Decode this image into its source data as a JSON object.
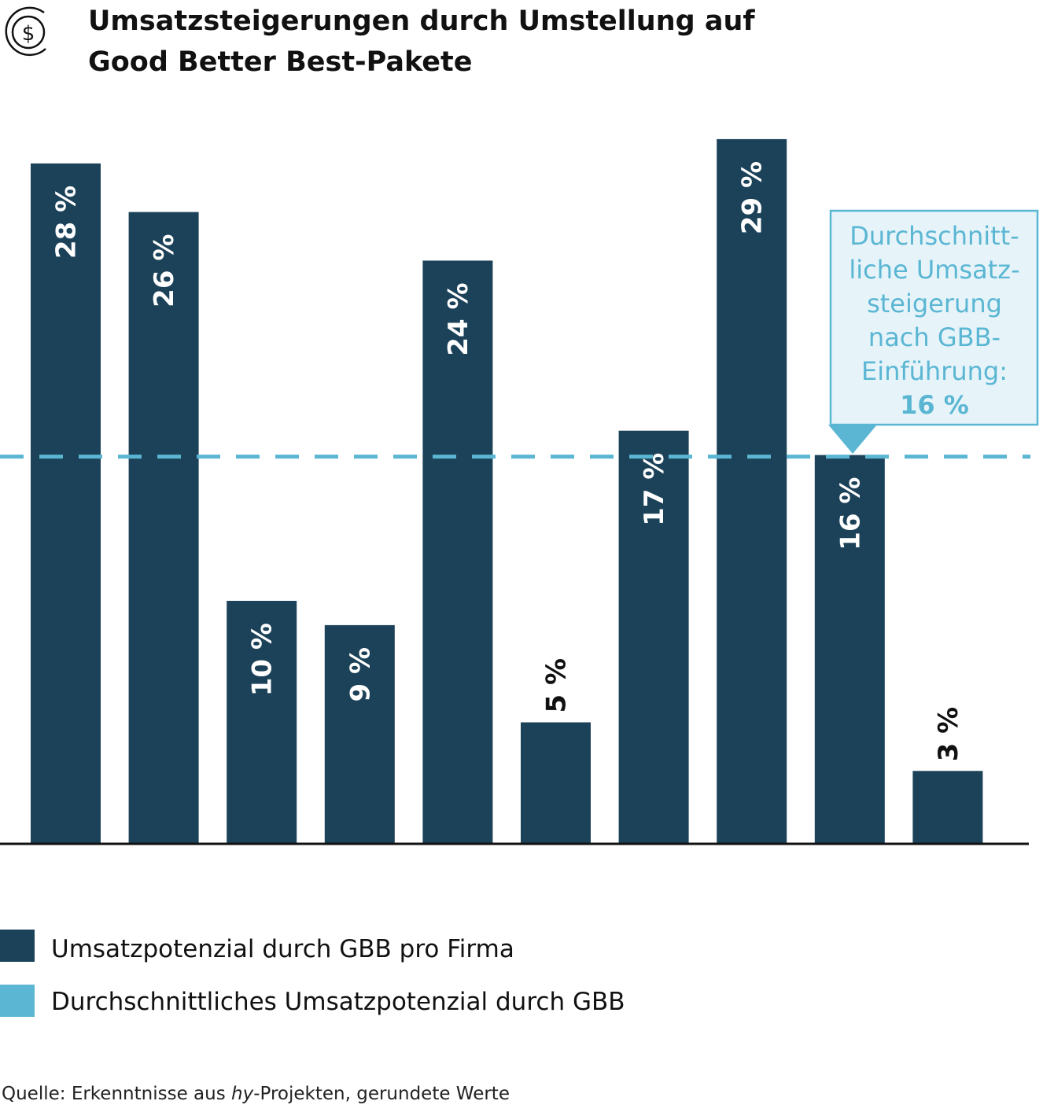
{
  "header": {
    "icon": "dollar-coin-icon",
    "title_line1": "Umsatzsteigerungen durch Umstellung auf",
    "title_line2": "Good Better Best-Pakete"
  },
  "chart_data": {
    "type": "bar",
    "categories": [
      "",
      "",
      "",
      "",
      "",
      "",
      "",
      "",
      "",
      ""
    ],
    "series": [
      {
        "name": "Umsatzpotenzial durch GBB pro Firma",
        "values": [
          28,
          26,
          10,
          9,
          24,
          5,
          17,
          29,
          16,
          3
        ],
        "labels": [
          "28 %",
          "26 %",
          "10 %",
          "9 %",
          "24 %",
          "5 %",
          "17 %",
          "29 %",
          "16 %",
          "3 %"
        ],
        "color": "#1c4259"
      }
    ],
    "average": {
      "name": "Durchschnittliches Umsatzpotenzial durch GBB",
      "value": 16,
      "color": "#5ab6d3",
      "style": "dashed"
    },
    "ylim": [
      0,
      30
    ],
    "grid": false,
    "legend_position": "bottom-left"
  },
  "callout": {
    "lines": [
      "Durchschnitt-",
      "liche Umsatz-",
      "steigerung",
      "nach GBB-",
      "Einführung:"
    ],
    "value": "16 %"
  },
  "legend": {
    "items": [
      {
        "label": "Umsatzpotenzial durch GBB pro Firma",
        "color": "#1c4259"
      },
      {
        "label": "Durchschnittliches Umsatzpotenzial durch GBB",
        "color": "#5ab6d3"
      }
    ]
  },
  "source": {
    "prefix": "Quelle: Erkenntnisse aus ",
    "italic": "hy",
    "suffix": "-Projekten, gerundete Werte"
  }
}
